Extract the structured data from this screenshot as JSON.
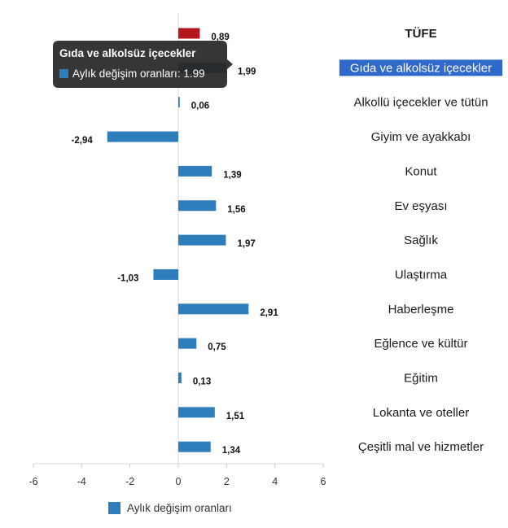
{
  "chart_data": {
    "type": "bar",
    "orientation": "horizontal",
    "categories": [
      "TÜFE",
      "Gıda ve alkolsüz içecekler",
      "Alkollü içecekler ve tütün",
      "Giyim ve ayakkabı",
      "Konut",
      "Ev eşyası",
      "Sağlık",
      "Ulaştırma",
      "Haberleşme",
      "Eğlence ve kültür",
      "Eğitim",
      "Lokanta ve oteller",
      "Çeşitli mal ve hizmetler"
    ],
    "series": [
      {
        "name": "Aylık değişim oranları",
        "values": [
          0.89,
          1.99,
          0.06,
          -2.94,
          1.39,
          1.56,
          1.97,
          -1.03,
          2.91,
          0.75,
          0.13,
          1.51,
          1.34
        ],
        "value_labels": [
          "0,89",
          "1,99",
          "0,06",
          "-2,94",
          "1,39",
          "1,56",
          "1,97",
          "-1,03",
          "2,91",
          "0,75",
          "0,13",
          "1,51",
          "1,34"
        ]
      }
    ],
    "xlim": [
      -6,
      6
    ],
    "x_ticks": [
      "-6",
      "-4",
      "-2",
      "0",
      "2",
      "4",
      "6"
    ],
    "x_tick_values": [
      -6,
      -4,
      -2,
      0,
      2,
      4,
      6
    ],
    "grid": false,
    "legend": {
      "position": "bottom",
      "label": "Aylık değişim oranları"
    },
    "colors": {
      "bar": "#2f7ebc",
      "highlight_bar": "#b5161e",
      "hover_bar": "#0d3a66",
      "selected_label_bg": "#2f69c9"
    },
    "highlight_index": 0,
    "hover_index": 1
  },
  "tooltip": {
    "title": "Gıda ve alkolsüz içecekler",
    "series_label": "Aylık değişim oranları",
    "value_text": "1.99"
  }
}
